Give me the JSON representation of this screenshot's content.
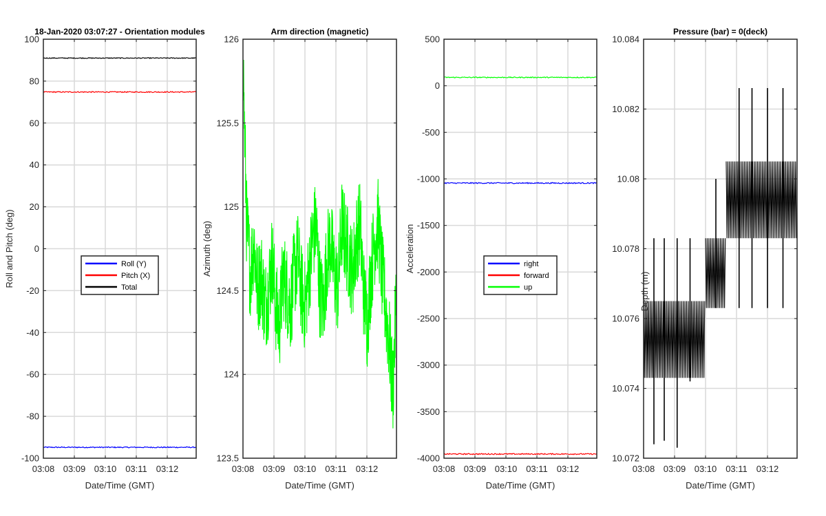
{
  "chart_data": [
    {
      "type": "line",
      "title": "18-Jan-2020 03:07:27 - Orientation modules",
      "xlabel": "Date/Time (GMT)",
      "ylabel": "Roll and Pitch (deg)",
      "x_ticks": [
        "03:08",
        "03:09",
        "03:10",
        "03:11",
        "03:12"
      ],
      "x_range": [
        "03:08:00",
        "03:12:58"
      ],
      "ylim": [
        -100,
        100
      ],
      "y_ticks": [
        "-100",
        "-80",
        "-60",
        "-40",
        "-20",
        "0",
        "20",
        "40",
        "60",
        "80",
        "100"
      ],
      "grid": true,
      "legend": {
        "placement": "center",
        "entries": [
          "Roll (Y)",
          "Pitch (X)",
          "Total"
        ]
      },
      "series": [
        {
          "name": "Roll (Y)",
          "color": "#0000ff",
          "level": -94.8,
          "noise": 0.25
        },
        {
          "name": "Pitch (X)",
          "color": "#ff0000",
          "level": 74.8,
          "noise": 0.25
        },
        {
          "name": "Total",
          "color": "#000000",
          "level": 91.0,
          "noise": 0.2
        }
      ]
    },
    {
      "type": "line",
      "title": "Arm direction (magnetic)",
      "xlabel": "Date/Time (GMT)",
      "ylabel": "Azimuth (deg)",
      "x_ticks": [
        "03:08",
        "03:09",
        "03:10",
        "03:11",
        "03:12"
      ],
      "x_range": [
        "03:08:00",
        "03:12:58"
      ],
      "ylim": [
        123.5,
        126
      ],
      "y_ticks": [
        "123.5",
        "124",
        "124.5",
        "125",
        "125.5",
        "126"
      ],
      "grid": true,
      "series": [
        {
          "color": "#00ff00",
          "noise": 0.28,
          "samples": [
            125.9,
            124.9,
            124.6,
            124.8,
            124.5,
            124.6,
            124.4,
            124.5,
            124.7,
            124.4,
            124.3,
            124.6,
            124.5,
            124.4,
            124.6,
            124.7,
            124.5,
            124.4,
            124.6,
            124.8,
            124.9,
            124.5,
            124.4,
            124.7,
            124.8,
            124.6,
            124.5,
            124.9,
            124.8,
            124.7,
            124.6,
            124.8,
            124.9,
            124.5,
            124.3,
            124.6,
            124.8,
            124.9,
            124.6,
            124.4,
            124.2,
            123.9,
            124.5
          ]
        }
      ]
    },
    {
      "type": "line",
      "xlabel": "Date/Time (GMT)",
      "ylabel": "Acceleration",
      "x_ticks": [
        "03:08",
        "03:09",
        "03:10",
        "03:11",
        "03:12"
      ],
      "x_range": [
        "03:08:00",
        "03:12:58"
      ],
      "ylim": [
        -4000,
        500
      ],
      "y_ticks": [
        "-4000",
        "-3500",
        "-3000",
        "-2500",
        "-2000",
        "-1500",
        "-1000",
        "-500",
        "0",
        "500"
      ],
      "grid": true,
      "legend": {
        "placement": "center",
        "entries": [
          "right",
          "forward",
          "up"
        ]
      },
      "series": [
        {
          "name": "right",
          "color": "#0000ff",
          "level": -1045,
          "noise": 6
        },
        {
          "name": "forward",
          "color": "#ff0000",
          "level": -3955,
          "noise": 6
        },
        {
          "name": "up",
          "color": "#00ff00",
          "level": 90,
          "noise": 5
        }
      ]
    },
    {
      "type": "line",
      "title": "Pressure (bar) = 0(deck)",
      "xlabel": "Date/Time (GMT)",
      "ylabel": "Depth (m)",
      "x_ticks": [
        "03:08",
        "03:09",
        "03:10",
        "03:11",
        "03:12"
      ],
      "x_range": [
        "03:08:00",
        "03:12:58"
      ],
      "ylim": [
        10.072,
        10.084
      ],
      "y_ticks": [
        "10.072",
        "10.074",
        "10.076",
        "10.078",
        "10.08",
        "10.082",
        "10.084"
      ],
      "grid": true,
      "series": [
        {
          "color": "#000000",
          "segments": [
            {
              "from": "03:08:00",
              "to": "03:10:00",
              "low": 10.0743,
              "high": 10.0765
            },
            {
              "from": "03:10:00",
              "to": "03:10:40",
              "low": 10.0763,
              "high": 10.0783
            },
            {
              "from": "03:10:40",
              "to": "03:12:58",
              "low": 10.0783,
              "high": 10.0805
            }
          ],
          "spikes": [
            {
              "time": "03:08:20",
              "low": 10.0724,
              "high": 10.0783
            },
            {
              "time": "03:08:40",
              "low": 10.0725,
              "high": 10.0783
            },
            {
              "time": "03:09:05",
              "low": 10.0723,
              "high": 10.0783
            },
            {
              "time": "03:09:30",
              "low": 10.0742,
              "high": 10.0783
            },
            {
              "time": "03:10:20",
              "low": 10.0763,
              "high": 10.08
            },
            {
              "time": "03:11:05",
              "low": 10.0763,
              "high": 10.0826
            },
            {
              "time": "03:11:30",
              "low": 10.0763,
              "high": 10.0826
            },
            {
              "time": "03:12:00",
              "low": 10.0763,
              "high": 10.0826
            },
            {
              "time": "03:12:30",
              "low": 10.0763,
              "high": 10.0826
            }
          ]
        }
      ]
    }
  ]
}
